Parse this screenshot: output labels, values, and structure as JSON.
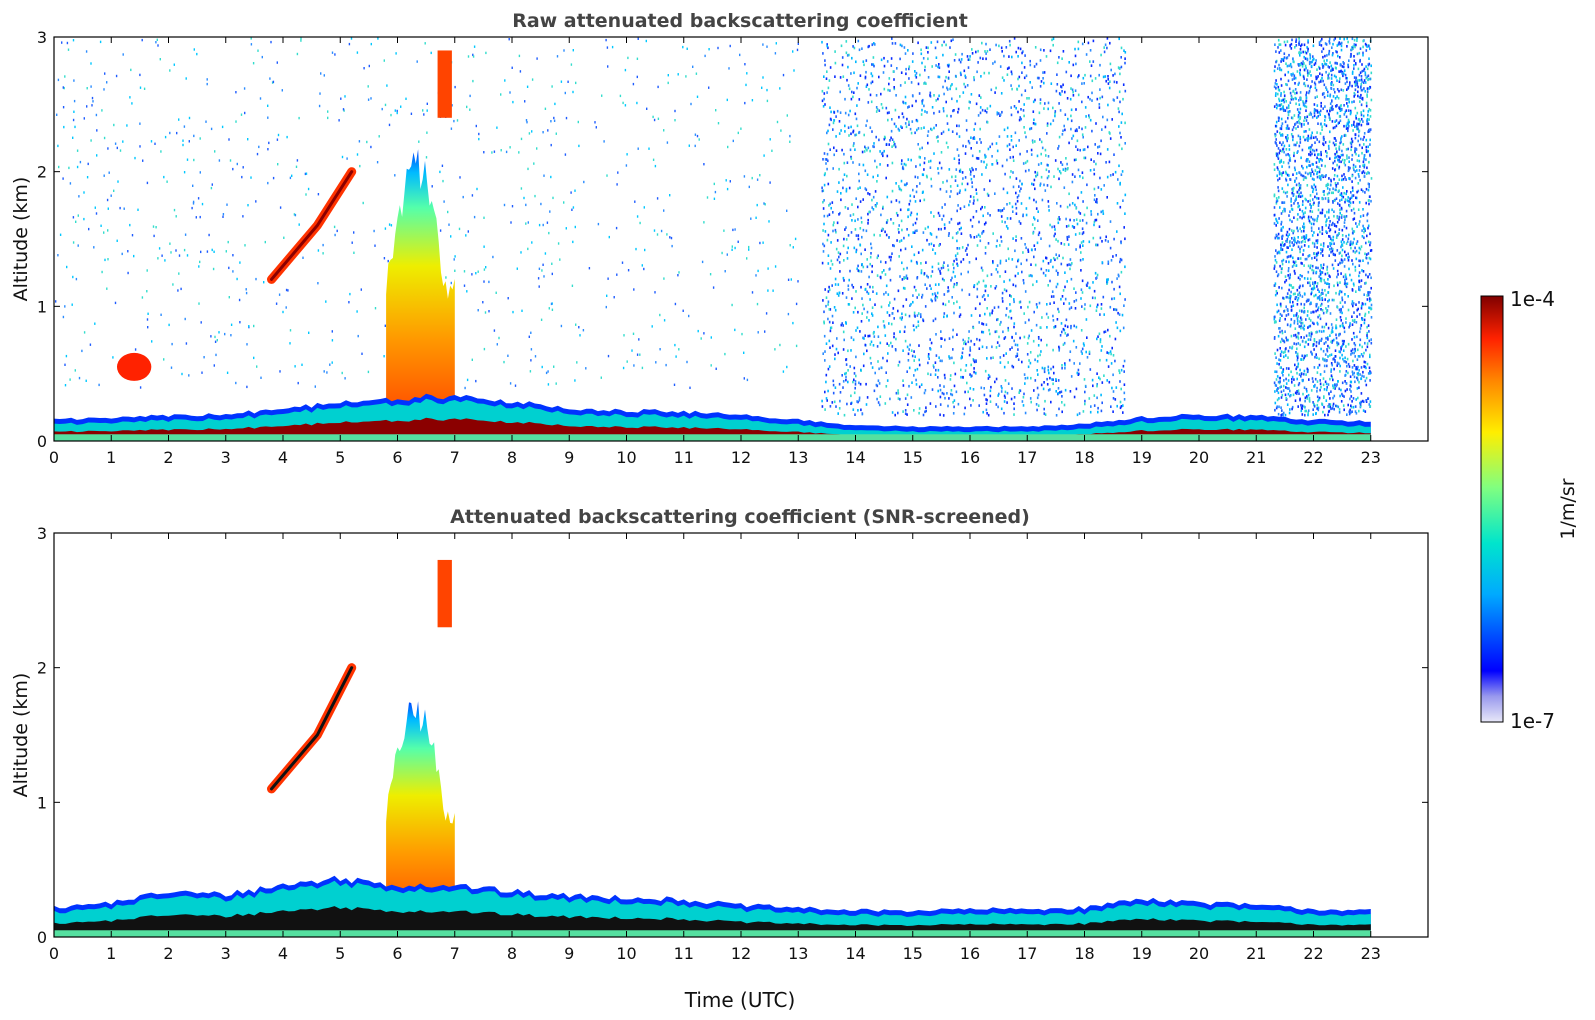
{
  "chart_data": [
    {
      "type": "heatmap",
      "title": "Raw attenuated backscattering coefficient",
      "xlabel": "",
      "ylabel": "Altitude (km)",
      "xlim": [
        0,
        24
      ],
      "ylim": [
        0,
        3
      ],
      "x_ticks": [
        0,
        1,
        2,
        3,
        4,
        5,
        6,
        7,
        8,
        9,
        10,
        11,
        12,
        13,
        14,
        15,
        16,
        17,
        18,
        19,
        20,
        21,
        22,
        23
      ],
      "y_ticks": [
        0,
        1,
        2,
        3
      ],
      "data_end_time": 23,
      "features": [
        {
          "name": "boundary layer",
          "t": [
            0,
            1,
            2,
            3,
            4,
            5,
            6,
            7,
            8,
            9,
            10,
            11,
            12,
            13,
            14,
            15,
            16,
            17,
            18,
            19,
            20,
            21,
            22,
            23
          ],
          "top_km": [
            0.12,
            0.14,
            0.15,
            0.16,
            0.2,
            0.25,
            0.28,
            0.3,
            0.26,
            0.2,
            0.19,
            0.18,
            0.16,
            0.12,
            0.08,
            0.07,
            0.07,
            0.07,
            0.09,
            0.14,
            0.16,
            0.15,
            0.12,
            0.11
          ]
        },
        {
          "name": "tall aerosol plume",
          "t_start": 5.8,
          "t_end": 7.0,
          "top_km": 2.2
        },
        {
          "name": "upper layer",
          "t": [
            3.8,
            4.6,
            5.2
          ],
          "alt_km": [
            1.2,
            1.6,
            2.0
          ]
        },
        {
          "name": "thin layer",
          "t_start": 6.7,
          "t_end": 6.95,
          "alt_km": 2.9
        },
        {
          "name": "low cloud",
          "t_start": 1.1,
          "t_end": 1.7,
          "alt_km": 0.55
        },
        {
          "name": "noise region",
          "t_start": 13.4,
          "t_end": 18.7,
          "alt_km": [
            0.2,
            3.0
          ]
        },
        {
          "name": "noise region",
          "t_start": 21.3,
          "t_end": 23.0,
          "alt_km": [
            0.2,
            3.0
          ]
        }
      ]
    },
    {
      "type": "heatmap",
      "title": "Attenuated backscattering coefficient (SNR-screened)",
      "xlabel": "Time (UTC)",
      "ylabel": "Altitude (km)",
      "xlim": [
        0,
        24
      ],
      "ylim": [
        0,
        3
      ],
      "x_ticks": [
        0,
        1,
        2,
        3,
        4,
        5,
        6,
        7,
        8,
        9,
        10,
        11,
        12,
        13,
        14,
        15,
        16,
        17,
        18,
        19,
        20,
        21,
        22,
        23
      ],
      "y_ticks": [
        0,
        1,
        2,
        3
      ],
      "data_end_time": 23,
      "features": [
        {
          "name": "boundary layer",
          "t": [
            0,
            1,
            2,
            3,
            4,
            5,
            6,
            7,
            8,
            9,
            10,
            11,
            12,
            13,
            14,
            15,
            16,
            17,
            18,
            19,
            20,
            21,
            22,
            23
          ],
          "top_km": [
            0.18,
            0.22,
            0.3,
            0.28,
            0.35,
            0.4,
            0.35,
            0.35,
            0.3,
            0.27,
            0.26,
            0.24,
            0.2,
            0.18,
            0.16,
            0.16,
            0.17,
            0.17,
            0.18,
            0.25,
            0.22,
            0.2,
            0.17,
            0.16
          ]
        },
        {
          "name": "tall aerosol plume",
          "t_start": 5.8,
          "t_end": 7.0,
          "top_km": 1.8
        },
        {
          "name": "upper layer",
          "t": [
            3.8,
            4.6,
            5.2
          ],
          "alt_km": [
            1.1,
            1.5,
            2.0
          ]
        },
        {
          "name": "thin layer",
          "t_start": 6.7,
          "t_end": 6.95,
          "alt_km": 2.8
        }
      ]
    }
  ],
  "colorbar": {
    "max_label": "1e-4",
    "min_label": "1e-7",
    "unit_label": "1/m/sr",
    "colormap": "jet"
  }
}
